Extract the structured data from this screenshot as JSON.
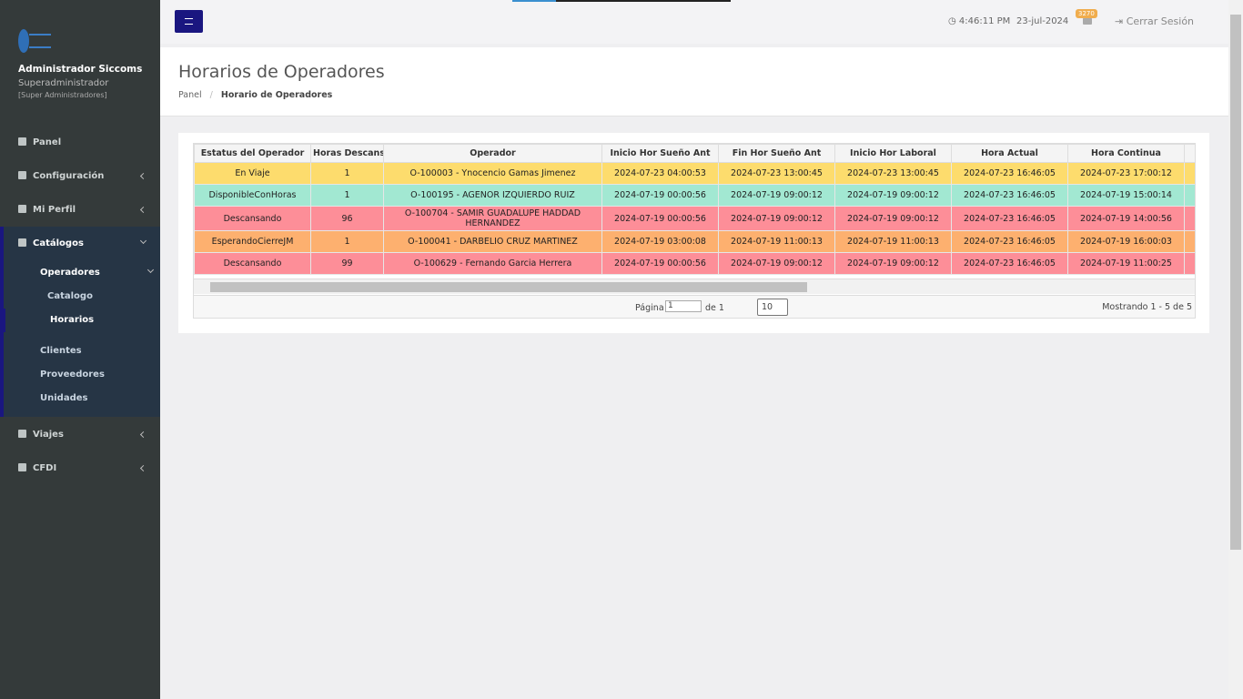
{
  "sidebar": {
    "user_name": "Administrador Siccoms",
    "role": "Superadministrador",
    "group": "[Super Administradores]",
    "menu": [
      {
        "label": "Panel"
      },
      {
        "label": "Configuración"
      },
      {
        "label": "Mi Perfil"
      },
      {
        "label": "Catálogos"
      },
      {
        "label": "Operadores"
      },
      {
        "label": "Catalogo"
      },
      {
        "label": "Horarios"
      },
      {
        "label": "Clientes"
      },
      {
        "label": "Proveedores"
      },
      {
        "label": "Unidades"
      },
      {
        "label": "Viajes"
      },
      {
        "label": "CFDI"
      }
    ]
  },
  "header": {
    "time": "4:46:11 PM",
    "date": "23-jul-2024",
    "notifications": "3270",
    "logout": "Cerrar Sesión"
  },
  "page": {
    "title": "Horarios de Operadores",
    "breadcrumb": [
      "Panel",
      "Horario de Operadores"
    ]
  },
  "table": {
    "columns": [
      "Estatus del Operador",
      "Horas Descansa",
      "Operador",
      "Inicio Hor Sueño Ant",
      "Fin Hor Sueño Ant",
      "Inicio Hor Laboral",
      "Hora Actual",
      "Hora Continua"
    ],
    "rows": [
      {
        "color": "#fddc6d",
        "cells": [
          "En Viaje",
          "1",
          "O-100003 - Ynocencio Gamas Jimenez",
          "2024-07-23 04:00:53",
          "2024-07-23 13:00:45",
          "2024-07-23 13:00:45",
          "2024-07-23 16:46:05",
          "2024-07-23 17:00:12"
        ]
      },
      {
        "color": "#a2e8d2",
        "cells": [
          "DisponibleConHoras",
          "1",
          "O-100195 - AGENOR IZQUIERDO RUIZ",
          "2024-07-19 00:00:56",
          "2024-07-19 09:00:12",
          "2024-07-19 09:00:12",
          "2024-07-23 16:46:05",
          "2024-07-19 15:00:14"
        ]
      },
      {
        "color": "#fd8e98",
        "cells": [
          "Descansando",
          "96",
          "O-100704 - SAMIR GUADALUPE HADDAD HERNANDEZ",
          "2024-07-19 00:00:56",
          "2024-07-19 09:00:12",
          "2024-07-19 09:00:12",
          "2024-07-23 16:46:05",
          "2024-07-19 14:00:56"
        ]
      },
      {
        "color": "#fdb06f",
        "cells": [
          "EsperandoCierreJM",
          "1",
          "O-100041 - DARBELIO CRUZ MARTINEZ",
          "2024-07-19 03:00:08",
          "2024-07-19 11:00:13",
          "2024-07-19 11:00:13",
          "2024-07-23 16:46:05",
          "2024-07-19 16:00:03"
        ]
      },
      {
        "color": "#fd8e98",
        "cells": [
          "Descansando",
          "99",
          "O-100629 - Fernando Garcia Herrera",
          "2024-07-19 00:00:56",
          "2024-07-19 09:00:12",
          "2024-07-19 09:00:12",
          "2024-07-23 16:46:05",
          "2024-07-19 11:00:25"
        ]
      }
    ]
  },
  "pager": {
    "page_label": "Página",
    "page": "1",
    "of": "de 1",
    "page_size": "10",
    "summary": "Mostrando 1 - 5 de 5"
  }
}
